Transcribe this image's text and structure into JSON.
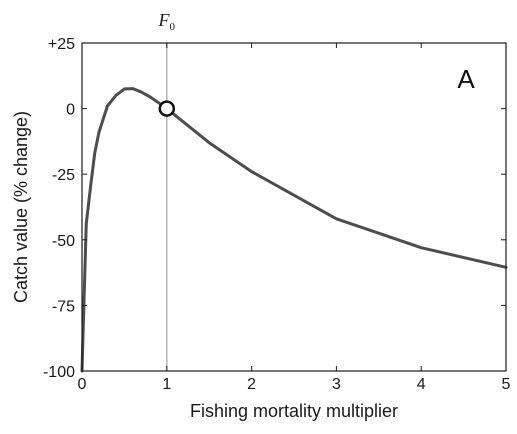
{
  "chart_data": {
    "type": "line",
    "xlabel": "Fishing mortality multiplier",
    "ylabel": "Catch value (% change)",
    "panel_label": "A",
    "xlim": [
      0,
      5
    ],
    "ylim": [
      -100,
      25
    ],
    "x_ticks": [
      0,
      1,
      2,
      3,
      4,
      5
    ],
    "x_tick_labels": [
      "0",
      "1",
      "2",
      "3",
      "4",
      "5"
    ],
    "y_ticks": [
      25,
      0,
      -25,
      -50,
      -75,
      -100
    ],
    "y_tick_labels": [
      "+25",
      "0",
      "-25",
      "-50",
      "-75",
      "-100"
    ],
    "reference_line": {
      "x": 1,
      "label_main": "F",
      "label_sub": "0",
      "color": "#b3b3b3"
    },
    "marker": {
      "x": 1,
      "y": 0,
      "style": "open circle"
    },
    "series": [
      {
        "color": "#4d4d4d",
        "x": [
          0,
          0.05,
          0.1,
          0.15,
          0.2,
          0.3,
          0.4,
          0.5,
          0.6,
          0.7,
          0.8,
          0.9,
          1.0,
          1.5,
          2.0,
          3.0,
          4.0,
          5.0
        ],
        "y": [
          -100,
          -44,
          -30,
          -17,
          -9,
          1,
          5,
          7.5,
          7.6,
          6.3,
          4.5,
          2.3,
          0,
          -13,
          -24,
          -42,
          -53,
          -60.5
        ]
      }
    ],
    "grid": false,
    "legend": "none"
  }
}
